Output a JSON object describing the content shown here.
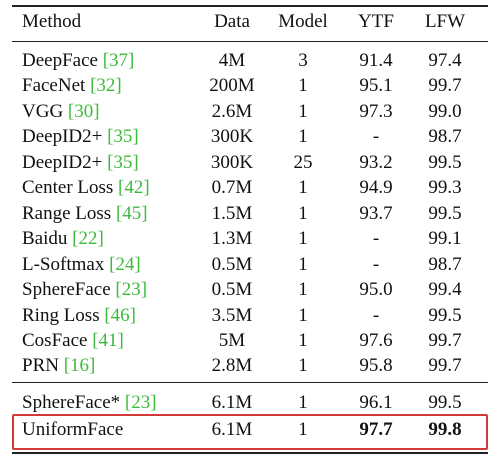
{
  "table": {
    "header": [
      "Method",
      "Data",
      "Model",
      "YTF",
      "LFW"
    ],
    "groups": [
      [
        {
          "method": "DeepFace",
          "ref": "[37]",
          "data": "4M",
          "model": "3",
          "ytf": "91.4",
          "lfw": "97.4"
        },
        {
          "method": "FaceNet",
          "ref": "[32]",
          "data": "200M",
          "model": "1",
          "ytf": "95.1",
          "lfw": "99.7"
        },
        {
          "method": "VGG",
          "ref": "[30]",
          "data": "2.6M",
          "model": "1",
          "ytf": "97.3",
          "lfw": "99.0"
        },
        {
          "method": "DeepID2+",
          "ref": "[35]",
          "data": "300K",
          "model": "1",
          "ytf": "-",
          "lfw": "98.7"
        },
        {
          "method": "DeepID2+",
          "ref": "[35]",
          "data": "300K",
          "model": "25",
          "ytf": "93.2",
          "lfw": "99.5"
        },
        {
          "method": "Center Loss",
          "ref": "[42]",
          "data": "0.7M",
          "model": "1",
          "ytf": "94.9",
          "lfw": "99.3"
        },
        {
          "method": "Range Loss",
          "ref": "[45]",
          "data": "1.5M",
          "model": "1",
          "ytf": "93.7",
          "lfw": "99.5"
        },
        {
          "method": "Baidu",
          "ref": "[22]",
          "data": "1.3M",
          "model": "1",
          "ytf": "-",
          "lfw": "99.1"
        },
        {
          "method": "L-Softmax",
          "ref": "[24]",
          "data": "0.5M",
          "model": "1",
          "ytf": "-",
          "lfw": "98.7"
        },
        {
          "method": "SphereFace",
          "ref": "[23]",
          "data": "0.5M",
          "model": "1",
          "ytf": "95.0",
          "lfw": "99.4"
        },
        {
          "method": "Ring Loss",
          "ref": "[46]",
          "data": "3.5M",
          "model": "1",
          "ytf": "-",
          "lfw": "99.5"
        },
        {
          "method": "CosFace",
          "ref": "[41]",
          "data": "5M",
          "model": "1",
          "ytf": "97.6",
          "lfw": "99.7"
        },
        {
          "method": "PRN",
          "ref": "[16]",
          "data": "2.8M",
          "model": "1",
          "ytf": "95.8",
          "lfw": "99.7"
        }
      ],
      [
        {
          "method": "SphereFace*",
          "ref": "[23]",
          "data": "6.1M",
          "model": "1",
          "ytf": "96.1",
          "lfw": "99.5"
        },
        {
          "method": "UniformFace",
          "data": "6.1M",
          "model": "1",
          "ytf": "97.7",
          "lfw": "99.8"
        }
      ]
    ]
  }
}
